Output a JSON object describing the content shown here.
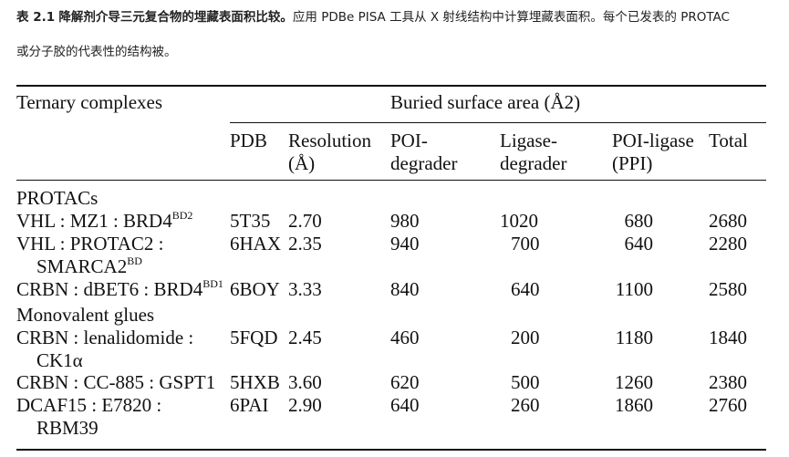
{
  "caption": {
    "label": "表 2.1",
    "title": "降解剂介导三元复合物的埋藏表面积比较。",
    "text_line1": "应用 PDBe PISA 工具从 X 射线结构中计算埋藏表面积。每个已发表的 PROTAC",
    "text_line2": "或分子胶的代表性的结构被。"
  },
  "header": {
    "ternary": "Ternary complexes",
    "buried": "Buried surface area (Å2)",
    "pdb": "PDB",
    "resolution_1": "Resolution",
    "resolution_2": "(Å)",
    "poi_1": "POI-",
    "poi_2": "degrader",
    "ligase_1": "Ligase-",
    "ligase_2": "degrader",
    "ppi_1": "POI-ligase",
    "ppi_2": "(PPI)",
    "total": "Total"
  },
  "groups": {
    "protacs": "PROTACs",
    "glues": "Monovalent glues"
  },
  "rows": [
    {
      "complex": "VHL : MZ1 : BRD4",
      "sup": "BD2",
      "pdb": "5T35",
      "resolution": "2.70",
      "poi": "980",
      "ligase": "1020",
      "ppi": "680",
      "total": "2680"
    },
    {
      "complex": "VHL : PROTAC2 :",
      "complex2": "SMARCA2",
      "sup2": "BD",
      "pdb": "6HAX",
      "resolution": "2.35",
      "poi": "940",
      "ligase": "700",
      "ppi": "640",
      "total": "2280"
    },
    {
      "complex": "CRBN : dBET6 : BRD4",
      "sup": "BD1",
      "pdb": "6BOY",
      "resolution": "3.33",
      "poi": "840",
      "ligase": "640",
      "ppi": "1100",
      "total": "2580"
    },
    {
      "complex": "CRBN : lenalidomide :",
      "complex2": "CK1α",
      "pdb": "5FQD",
      "resolution": "2.45",
      "poi": "460",
      "ligase": "200",
      "ppi": "1180",
      "total": "1840"
    },
    {
      "complex": "CRBN : CC-885 : GSPT1",
      "pdb": "5HXB",
      "resolution": "3.60",
      "poi": "620",
      "ligase": "500",
      "ppi": "1260",
      "total": "2380"
    },
    {
      "complex": "DCAF15 : E7820 :",
      "complex2": "RBM39",
      "pdb": "6PAI",
      "resolution": "2.90",
      "poi": "640",
      "ligase": "260",
      "ppi": "1860",
      "total": "2760"
    }
  ]
}
